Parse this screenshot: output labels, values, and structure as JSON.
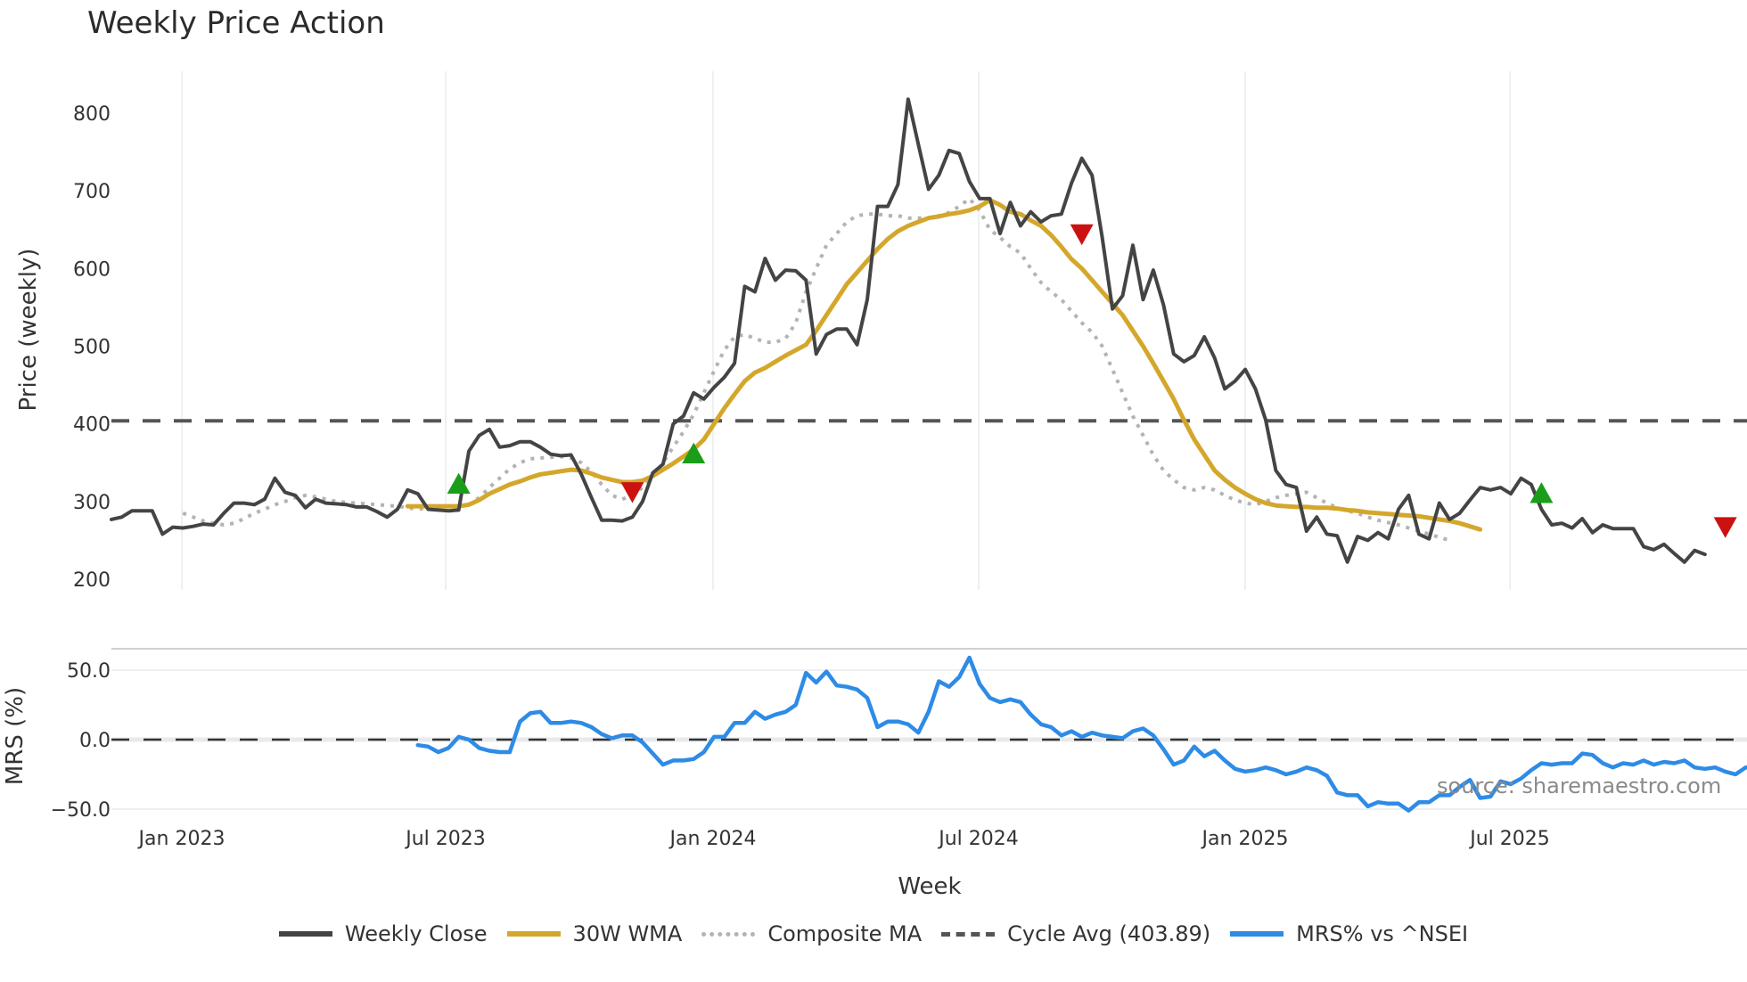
{
  "title": "Weekly Price Action",
  "watermark": "source: sharemaestro.com",
  "legend": [
    {
      "label": "Weekly Close",
      "style": "solid",
      "color": "#444444"
    },
    {
      "label": "30W WMA",
      "style": "solid",
      "color": "#D4A72C"
    },
    {
      "label": "Composite MA",
      "style": "dotted",
      "color": "#B3B3B3"
    },
    {
      "label": "Cycle Avg (403.89)",
      "style": "dashed",
      "color": "#555555"
    },
    {
      "label": "MRS% vs ^NSEI",
      "style": "solid",
      "color": "#2E8BE6"
    }
  ],
  "chart_data": [
    {
      "type": "line",
      "title": "Weekly Price Action",
      "xlabel": "Week",
      "ylabel": "Price (weekly)",
      "ylim": [
        190,
        850
      ],
      "yticks": [
        200,
        300,
        400,
        500,
        600,
        700,
        800
      ],
      "xticks": [
        "Jan 2023",
        "Jul 2023",
        "Jan 2024",
        "Jul 2024",
        "Jan 2025",
        "Jul 2025"
      ],
      "grid": "vertical",
      "x_start": "Nov 2022",
      "x_step": "1 week",
      "reference_line": {
        "name": "Cycle Avg",
        "value": 403.89,
        "style": "dashed"
      },
      "series": [
        {
          "name": "Weekly Close",
          "color": "#444444",
          "start_index": 0,
          "values": [
            277,
            280,
            288,
            288,
            288,
            258,
            267,
            266,
            268,
            271,
            270,
            285,
            298,
            298,
            296,
            303,
            330,
            312,
            308,
            292,
            303,
            298,
            297,
            296,
            293,
            293,
            287,
            280,
            290,
            315,
            310,
            290,
            289,
            288,
            289,
            365,
            385,
            393,
            370,
            372,
            377,
            377,
            370,
            361,
            359,
            360,
            335,
            305,
            276,
            276,
            275,
            280,
            300,
            337,
            348,
            400,
            410,
            440,
            432,
            447,
            460,
            478,
            577,
            570,
            613,
            585,
            598,
            597,
            585,
            490,
            515,
            522,
            522,
            502,
            560,
            680,
            680,
            708,
            818,
            760,
            702,
            720,
            752,
            748,
            712,
            690,
            690,
            645,
            685,
            655,
            673,
            660,
            668,
            670,
            710,
            742,
            720,
            640,
            548,
            565,
            630,
            560,
            598,
            553,
            490,
            480,
            488,
            512,
            485,
            445,
            455,
            470,
            445,
            405,
            340,
            322,
            318,
            262,
            280,
            258,
            256,
            222,
            255,
            250,
            260,
            252,
            290,
            308,
            258,
            252,
            298,
            277,
            285,
            302,
            318,
            315,
            318,
            310,
            330,
            322,
            290,
            270,
            272,
            266,
            278,
            260,
            270,
            265,
            265,
            265,
            242,
            238,
            245,
            233,
            222,
            237,
            232
          ]
        },
        {
          "name": "30W WMA",
          "color": "#D4A72C",
          "start_index": 29,
          "values": [
            294,
            294,
            294,
            294,
            294,
            294,
            296,
            302,
            310,
            316,
            322,
            326,
            331,
            335,
            337,
            339,
            341,
            340,
            336,
            331,
            328,
            325,
            325,
            327,
            333,
            341,
            349,
            358,
            367,
            380,
            400,
            420,
            438,
            455,
            466,
            472,
            480,
            488,
            495,
            502,
            520,
            540,
            560,
            580,
            595,
            610,
            625,
            638,
            648,
            655,
            660,
            665,
            667,
            670,
            672,
            675,
            680,
            688,
            682,
            673,
            670,
            662,
            655,
            643,
            628,
            612,
            600,
            585,
            570,
            555,
            540,
            520,
            500,
            478,
            455,
            432,
            405,
            380,
            360,
            340,
            328,
            318,
            310,
            303,
            298,
            295,
            294,
            293,
            293,
            292,
            292,
            291,
            289,
            288,
            286,
            285,
            284,
            283,
            282,
            281,
            279,
            277,
            275,
            272,
            268,
            264
          ]
        },
        {
          "name": "Composite MA",
          "color": "#B3B3B3",
          "start_index": 7,
          "values": [
            285,
            280,
            275,
            272,
            270,
            272,
            278,
            285,
            290,
            296,
            300,
            305,
            308,
            306,
            303,
            300,
            299,
            298,
            297,
            296,
            295,
            294,
            292,
            290,
            292,
            294,
            294,
            294,
            296,
            305,
            318,
            330,
            342,
            350,
            355,
            356,
            357,
            358,
            356,
            350,
            338,
            322,
            308,
            303,
            308,
            318,
            332,
            350,
            370,
            390,
            412,
            440,
            468,
            495,
            512,
            515,
            510,
            505,
            505,
            510,
            530,
            570,
            600,
            630,
            645,
            660,
            668,
            670,
            670,
            668,
            668,
            665,
            665,
            665,
            668,
            672,
            680,
            690,
            675,
            650,
            640,
            628,
            620,
            600,
            582,
            570,
            560,
            545,
            530,
            518,
            500,
            470,
            440,
            410,
            385,
            360,
            340,
            328,
            318,
            315,
            318,
            315,
            308,
            302,
            298,
            296,
            300,
            305,
            308,
            310,
            312,
            305,
            298,
            292,
            288,
            285,
            280,
            276,
            273,
            270,
            266,
            262,
            258,
            254,
            250
          ]
        }
      ],
      "markers": [
        {
          "type": "buy",
          "shape": "triangle-up",
          "color": "#1A9E1A",
          "index": 34,
          "value": 322
        },
        {
          "type": "sell",
          "shape": "triangle-down",
          "color": "#CC1111",
          "index": 51,
          "value": 313
        },
        {
          "type": "buy",
          "shape": "triangle-up",
          "color": "#1A9E1A",
          "index": 57,
          "value": 361
        },
        {
          "type": "sell",
          "shape": "triangle-down",
          "color": "#CC1111",
          "index": 95,
          "value": 645
        },
        {
          "type": "buy",
          "shape": "triangle-up",
          "color": "#1A9E1A",
          "index": 140,
          "value": 310
        },
        {
          "type": "sell",
          "shape": "triangle-down",
          "color": "#CC1111",
          "index": 158,
          "value": 268
        }
      ]
    },
    {
      "type": "line",
      "title": "",
      "xlabel": "Week",
      "ylabel": "MRS (%)",
      "ylim": [
        -55,
        62
      ],
      "yticks": [
        50.0,
        0.0,
        -50.0
      ],
      "ytick_labels": [
        "50.0",
        "0.0",
        "−50.0"
      ],
      "reference_line": {
        "value": 0.0,
        "style": "dashed"
      },
      "series": [
        {
          "name": "MRS% vs ^NSEI",
          "color": "#2E8BE6",
          "start_index": 30,
          "values": [
            -4,
            -5,
            -9,
            -6,
            2,
            0,
            -6,
            -8,
            -9,
            -9,
            13,
            19,
            20,
            12,
            12,
            13,
            12,
            9,
            4,
            1,
            3,
            3,
            -2,
            -10,
            -18,
            -15,
            -15,
            -14,
            -9,
            2,
            2,
            12,
            12,
            20,
            15,
            18,
            20,
            25,
            48,
            41,
            49,
            39,
            38,
            36,
            30,
            9,
            13,
            13,
            11,
            5,
            20,
            42,
            38,
            45,
            59,
            40,
            30,
            27,
            29,
            27,
            18,
            11,
            9,
            3,
            6,
            2,
            5,
            3,
            2,
            1,
            6,
            8,
            3,
            -7,
            -18,
            -15,
            -5,
            -12,
            -8,
            -15,
            -21,
            -23,
            -22,
            -20,
            -22,
            -25,
            -23,
            -20,
            -22,
            -26,
            -38,
            -40,
            -40,
            -48,
            -45,
            -46,
            -46,
            -51,
            -45,
            -45,
            -40,
            -40,
            -34,
            -29,
            -42,
            -41,
            -30,
            -32,
            -28,
            -22,
            -17,
            -18,
            -17,
            -17,
            -10,
            -11,
            -17,
            -20,
            -17,
            -18,
            -15,
            -18,
            -16,
            -17,
            -15,
            -20,
            -21,
            -20,
            -23,
            -25,
            -20,
            -21
          ]
        }
      ]
    }
  ],
  "axes": {
    "price_ylabel": "Price (weekly)",
    "mrs_ylabel": "MRS (%)",
    "xlabel": "Week"
  }
}
